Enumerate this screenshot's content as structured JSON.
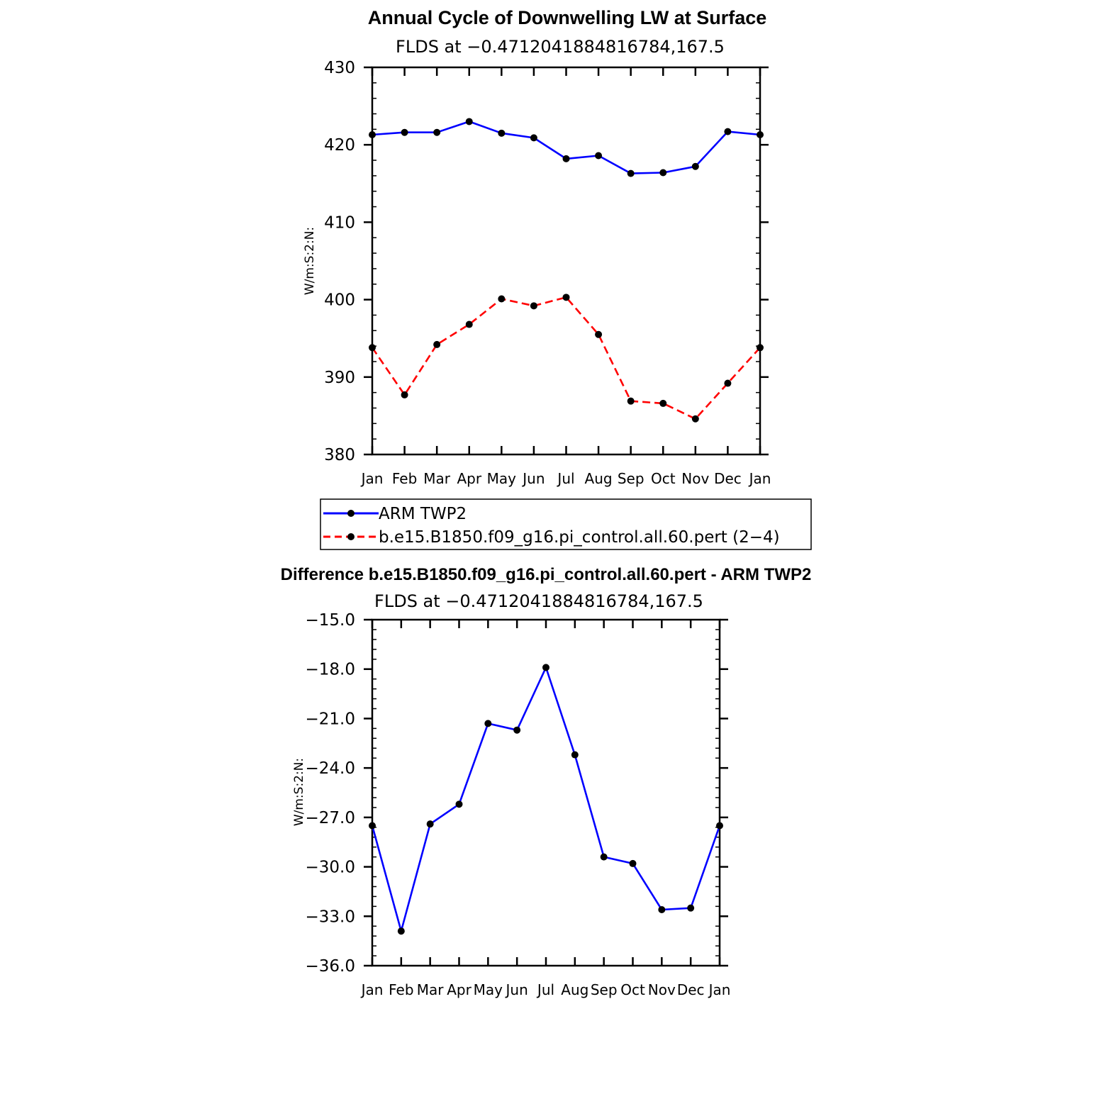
{
  "chart_data": [
    {
      "type": "line",
      "title": "Annual Cycle of Downwelling LW at Surface",
      "subtitle": "FLDS at −0.4712041884816784,167.5",
      "ylabel": "W/m:S:2:N:",
      "xlabel": "",
      "categories": [
        "Jan",
        "Feb",
        "Mar",
        "Apr",
        "May",
        "Jun",
        "Jul",
        "Aug",
        "Sep",
        "Oct",
        "Nov",
        "Dec",
        "Jan"
      ],
      "ylim": [
        380,
        430
      ],
      "yticks": [
        "430",
        "420",
        "410",
        "400",
        "390",
        "380"
      ],
      "ytick_values": [
        430,
        420,
        410,
        400,
        390,
        380
      ],
      "grid": false,
      "legend_placement": "below",
      "series": [
        {
          "name": "ARM TWP2",
          "color": "#0000ff",
          "dash": "solid",
          "values": [
            421.3,
            421.6,
            421.6,
            423.0,
            421.5,
            420.9,
            418.2,
            418.6,
            416.3,
            416.4,
            417.2,
            421.7,
            421.3
          ]
        },
        {
          "name": "b.e15.B1850.f09_g16.pi_control.all.60.pert (2−4)",
          "color": "#ff0000",
          "dash": "dashed",
          "values": [
            393.8,
            387.7,
            394.2,
            396.8,
            400.1,
            399.2,
            400.3,
            395.5,
            386.9,
            386.6,
            384.6,
            389.2,
            393.8
          ]
        }
      ]
    },
    {
      "type": "line",
      "title": "Difference b.e15.B1850.f09_g16.pi_control.all.60.pert - ARM TWP2",
      "subtitle": "FLDS at −0.4712041884816784,167.5",
      "ylabel": "W/m:S:2:N:",
      "xlabel": "",
      "categories": [
        "Jan",
        "Feb",
        "Mar",
        "Apr",
        "May",
        "Jun",
        "Jul",
        "Aug",
        "Sep",
        "Oct",
        "Nov",
        "Dec",
        "Jan"
      ],
      "ylim": [
        -36,
        -15
      ],
      "yticks": [
        "−15.0",
        "−18.0",
        "−21.0",
        "−24.0",
        "−27.0",
        "−30.0",
        "−33.0",
        "−36.0"
      ],
      "ytick_values": [
        -15,
        -18,
        -21,
        -24,
        -27,
        -30,
        -33,
        -36
      ],
      "grid": false,
      "series": [
        {
          "color": "#0000ff",
          "dash": "solid",
          "values": [
            -27.5,
            -33.9,
            -27.4,
            -26.2,
            -21.3,
            -21.7,
            -17.9,
            -23.2,
            -29.4,
            -29.8,
            -32.6,
            -32.5,
            -27.5
          ]
        }
      ]
    }
  ]
}
